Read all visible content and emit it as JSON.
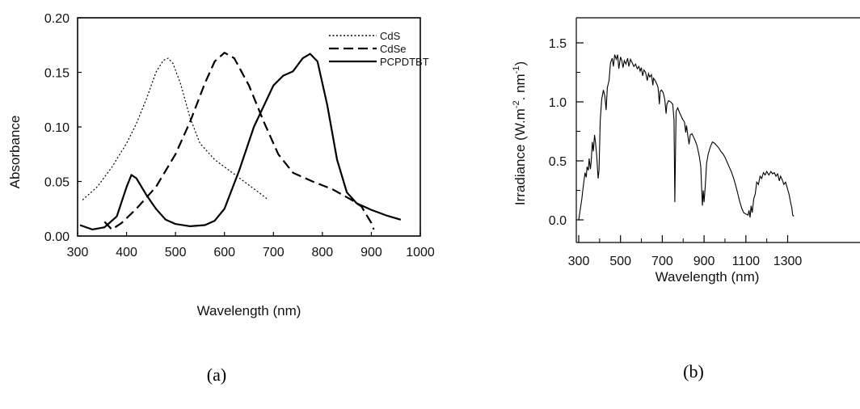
{
  "chart_data": [
    {
      "panel_label": "(a)",
      "type": "line",
      "xlabel": "Wavelength (nm)",
      "ylabel": "Absorbance",
      "xlim": [
        300,
        1000
      ],
      "ylim": [
        0.0,
        0.2
      ],
      "xticks": [
        "300",
        "400",
        "500",
        "600",
        "700",
        "800",
        "900",
        "1000"
      ],
      "yticks": [
        "0.00",
        "0.05",
        "0.10",
        "0.15",
        "0.20"
      ],
      "grid": false,
      "legend_position": "top-right",
      "series": [
        {
          "name": "CdS",
          "style": "dotted",
          "color": "#000000",
          "points": [
            [
              310,
              0.033
            ],
            [
              340,
              0.045
            ],
            [
              370,
              0.063
            ],
            [
              400,
              0.085
            ],
            [
              420,
              0.103
            ],
            [
              440,
              0.125
            ],
            [
              460,
              0.15
            ],
            [
              475,
              0.161
            ],
            [
              485,
              0.163
            ],
            [
              495,
              0.158
            ],
            [
              510,
              0.14
            ],
            [
              530,
              0.108
            ],
            [
              550,
              0.085
            ],
            [
              580,
              0.07
            ],
            [
              610,
              0.06
            ],
            [
              640,
              0.05
            ],
            [
              670,
              0.04
            ],
            [
              690,
              0.033
            ]
          ]
        },
        {
          "name": "CdSe",
          "style": "dashed",
          "color": "#000000",
          "points": [
            [
              355,
              0.013
            ],
            [
              370,
              0.006
            ],
            [
              390,
              0.012
            ],
            [
              420,
              0.025
            ],
            [
              460,
              0.045
            ],
            [
              500,
              0.075
            ],
            [
              530,
              0.105
            ],
            [
              560,
              0.14
            ],
            [
              580,
              0.16
            ],
            [
              600,
              0.168
            ],
            [
              620,
              0.163
            ],
            [
              650,
              0.138
            ],
            [
              680,
              0.105
            ],
            [
              710,
              0.075
            ],
            [
              740,
              0.058
            ],
            [
              780,
              0.05
            ],
            [
              820,
              0.043
            ],
            [
              860,
              0.033
            ],
            [
              880,
              0.027
            ],
            [
              900,
              0.012
            ],
            [
              905,
              0.006
            ]
          ]
        },
        {
          "name": "PCPDTBT",
          "style": "solid",
          "color": "#000000",
          "points": [
            [
              305,
              0.01
            ],
            [
              330,
              0.006
            ],
            [
              355,
              0.008
            ],
            [
              380,
              0.018
            ],
            [
              400,
              0.045
            ],
            [
              410,
              0.056
            ],
            [
              420,
              0.053
            ],
            [
              440,
              0.038
            ],
            [
              460,
              0.025
            ],
            [
              480,
              0.015
            ],
            [
              500,
              0.011
            ],
            [
              530,
              0.009
            ],
            [
              560,
              0.01
            ],
            [
              580,
              0.014
            ],
            [
              600,
              0.025
            ],
            [
              630,
              0.06
            ],
            [
              660,
              0.1
            ],
            [
              700,
              0.138
            ],
            [
              720,
              0.147
            ],
            [
              740,
              0.151
            ],
            [
              760,
              0.163
            ],
            [
              775,
              0.167
            ],
            [
              790,
              0.16
            ],
            [
              810,
              0.12
            ],
            [
              830,
              0.07
            ],
            [
              850,
              0.04
            ],
            [
              870,
              0.03
            ],
            [
              900,
              0.024
            ],
            [
              930,
              0.019
            ],
            [
              960,
              0.015
            ]
          ]
        }
      ]
    },
    {
      "panel_label": "(b)",
      "type": "line",
      "xlabel": "Wavelength (nm)",
      "ylabel_parts": [
        "Irradiance (W.m",
        "-2",
        ". nm",
        "-1",
        ")"
      ],
      "xlim": [
        300,
        1350
      ],
      "ylim": [
        -0.1,
        1.6
      ],
      "xticks": [
        "300",
        "500",
        "700",
        "900",
        "1100",
        "1300"
      ],
      "yticks": [
        "0.0",
        "0.5",
        "1.0",
        "1.5"
      ],
      "grid": false,
      "series": [
        {
          "color": "#000000",
          "style": "solid",
          "points": [
            [
              300,
              0.0
            ],
            [
              305,
              0.06
            ],
            [
              315,
              0.18
            ],
            [
              320,
              0.26
            ],
            [
              325,
              0.33
            ],
            [
              330,
              0.4
            ],
            [
              336,
              0.36
            ],
            [
              340,
              0.45
            ],
            [
              346,
              0.42
            ],
            [
              350,
              0.52
            ],
            [
              356,
              0.43
            ],
            [
              360,
              0.5
            ],
            [
              365,
              0.66
            ],
            [
              370,
              0.58
            ],
            [
              376,
              0.72
            ],
            [
              380,
              0.66
            ],
            [
              386,
              0.55
            ],
            [
              393,
              0.35
            ],
            [
              397,
              0.42
            ],
            [
              403,
              0.84
            ],
            [
              410,
              1.02
            ],
            [
              418,
              1.1
            ],
            [
              425,
              1.05
            ],
            [
              431,
              0.93
            ],
            [
              437,
              1.12
            ],
            [
              445,
              1.18
            ],
            [
              452,
              1.33
            ],
            [
              460,
              1.37
            ],
            [
              466,
              1.3
            ],
            [
              472,
              1.4
            ],
            [
              480,
              1.36
            ],
            [
              486,
              1.4
            ],
            [
              492,
              1.28
            ],
            [
              500,
              1.38
            ],
            [
              506,
              1.35
            ],
            [
              512,
              1.29
            ],
            [
              518,
              1.35
            ],
            [
              526,
              1.32
            ],
            [
              534,
              1.37
            ],
            [
              540,
              1.3
            ],
            [
              548,
              1.36
            ],
            [
              556,
              1.33
            ],
            [
              564,
              1.3
            ],
            [
              572,
              1.32
            ],
            [
              580,
              1.28
            ],
            [
              588,
              1.3
            ],
            [
              594,
              1.26
            ],
            [
              600,
              1.29
            ],
            [
              606,
              1.22
            ],
            [
              612,
              1.27
            ],
            [
              620,
              1.25
            ],
            [
              628,
              1.18
            ],
            [
              634,
              1.24
            ],
            [
              640,
              1.21
            ],
            [
              648,
              1.23
            ],
            [
              655,
              1.14
            ],
            [
              658,
              1.2
            ],
            [
              666,
              1.18
            ],
            [
              674,
              1.15
            ],
            [
              680,
              1.12
            ],
            [
              686,
              0.98
            ],
            [
              690,
              1.09
            ],
            [
              696,
              1.1
            ],
            [
              704,
              1.08
            ],
            [
              712,
              1.02
            ],
            [
              718,
              0.9
            ],
            [
              722,
              0.98
            ],
            [
              730,
              1.01
            ],
            [
              740,
              1.0
            ],
            [
              750,
              0.98
            ],
            [
              756,
              0.85
            ],
            [
              760,
              0.15
            ],
            [
              763,
              0.55
            ],
            [
              766,
              0.92
            ],
            [
              774,
              0.95
            ],
            [
              782,
              0.91
            ],
            [
              790,
              0.88
            ],
            [
              798,
              0.85
            ],
            [
              806,
              0.83
            ],
            [
              812,
              0.74
            ],
            [
              816,
              0.8
            ],
            [
              822,
              0.72
            ],
            [
              828,
              0.64
            ],
            [
              834,
              0.72
            ],
            [
              842,
              0.73
            ],
            [
              850,
              0.7
            ],
            [
              858,
              0.67
            ],
            [
              866,
              0.63
            ],
            [
              872,
              0.58
            ],
            [
              878,
              0.53
            ],
            [
              884,
              0.45
            ],
            [
              888,
              0.28
            ],
            [
              892,
              0.12
            ],
            [
              896,
              0.25
            ],
            [
              900,
              0.15
            ],
            [
              906,
              0.3
            ],
            [
              912,
              0.48
            ],
            [
              920,
              0.56
            ],
            [
              930,
              0.62
            ],
            [
              940,
              0.66
            ],
            [
              950,
              0.65
            ],
            [
              960,
              0.63
            ],
            [
              970,
              0.61
            ],
            [
              980,
              0.58
            ],
            [
              990,
              0.56
            ],
            [
              1000,
              0.53
            ],
            [
              1010,
              0.49
            ],
            [
              1020,
              0.45
            ],
            [
              1030,
              0.41
            ],
            [
              1040,
              0.36
            ],
            [
              1050,
              0.3
            ],
            [
              1060,
              0.23
            ],
            [
              1070,
              0.16
            ],
            [
              1080,
              0.1
            ],
            [
              1090,
              0.06
            ],
            [
              1100,
              0.05
            ],
            [
              1110,
              0.04
            ],
            [
              1115,
              0.08
            ],
            [
              1120,
              0.02
            ],
            [
              1125,
              0.12
            ],
            [
              1130,
              0.06
            ],
            [
              1138,
              0.18
            ],
            [
              1145,
              0.22
            ],
            [
              1152,
              0.32
            ],
            [
              1160,
              0.3
            ],
            [
              1168,
              0.37
            ],
            [
              1176,
              0.35
            ],
            [
              1184,
              0.4
            ],
            [
              1192,
              0.38
            ],
            [
              1200,
              0.41
            ],
            [
              1210,
              0.38
            ],
            [
              1220,
              0.41
            ],
            [
              1228,
              0.39
            ],
            [
              1236,
              0.4
            ],
            [
              1244,
              0.37
            ],
            [
              1252,
              0.39
            ],
            [
              1260,
              0.33
            ],
            [
              1266,
              0.37
            ],
            [
              1274,
              0.34
            ],
            [
              1282,
              0.3
            ],
            [
              1290,
              0.32
            ],
            [
              1298,
              0.27
            ],
            [
              1306,
              0.22
            ],
            [
              1314,
              0.15
            ],
            [
              1320,
              0.1
            ],
            [
              1324,
              0.04
            ],
            [
              1330,
              0.03
            ]
          ]
        }
      ]
    }
  ]
}
